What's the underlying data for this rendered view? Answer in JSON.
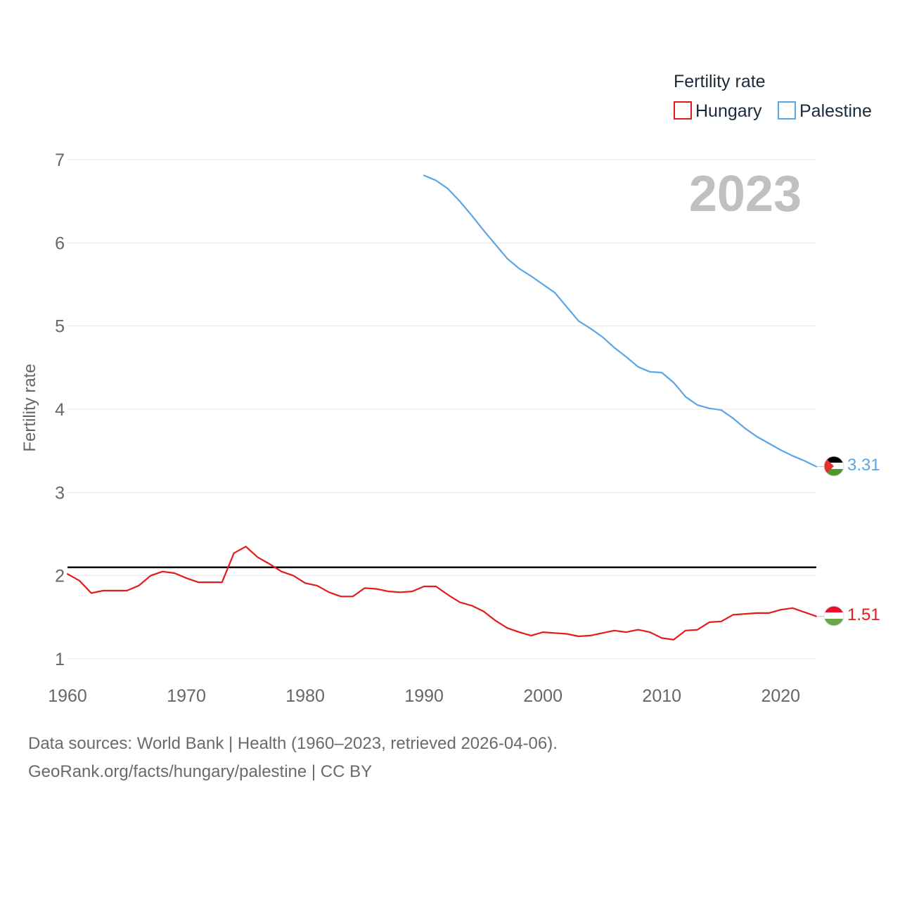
{
  "chart_data": {
    "type": "line",
    "title": "",
    "xlabel": "",
    "ylabel": "Fertility rate",
    "xlim": [
      1960,
      2023
    ],
    "ylim": [
      0.75,
      7
    ],
    "yticks": [
      1,
      2,
      3,
      4,
      5,
      6,
      7
    ],
    "xticks": [
      1960,
      1970,
      1980,
      1990,
      2000,
      2010,
      2020
    ],
    "year_label": "2023",
    "legend_title": "Fertility rate",
    "legend_position": "top-right",
    "reference_line": {
      "y": 2.1,
      "color": "#000000"
    },
    "series": [
      {
        "name": "Hungary",
        "color": "#e31b1b",
        "end_label": "1.51",
        "x": [
          1960,
          1961,
          1962,
          1963,
          1964,
          1965,
          1966,
          1967,
          1968,
          1969,
          1970,
          1971,
          1972,
          1973,
          1974,
          1975,
          1976,
          1977,
          1978,
          1979,
          1980,
          1981,
          1982,
          1983,
          1984,
          1985,
          1986,
          1987,
          1988,
          1989,
          1990,
          1991,
          1992,
          1993,
          1994,
          1995,
          1996,
          1997,
          1998,
          1999,
          2000,
          2001,
          2002,
          2003,
          2004,
          2005,
          2006,
          2007,
          2008,
          2009,
          2010,
          2011,
          2012,
          2013,
          2014,
          2015,
          2016,
          2017,
          2018,
          2019,
          2020,
          2021,
          2022,
          2023
        ],
        "values": [
          2.02,
          1.94,
          1.79,
          1.82,
          1.82,
          1.82,
          1.88,
          2.0,
          2.05,
          2.03,
          1.97,
          1.92,
          1.92,
          1.92,
          2.27,
          2.35,
          2.22,
          2.14,
          2.05,
          2.0,
          1.91,
          1.88,
          1.8,
          1.75,
          1.75,
          1.85,
          1.84,
          1.81,
          1.8,
          1.81,
          1.87,
          1.87,
          1.77,
          1.68,
          1.64,
          1.57,
          1.46,
          1.37,
          1.32,
          1.28,
          1.32,
          1.31,
          1.3,
          1.27,
          1.28,
          1.31,
          1.34,
          1.32,
          1.35,
          1.32,
          1.25,
          1.23,
          1.34,
          1.35,
          1.44,
          1.45,
          1.53,
          1.54,
          1.55,
          1.55,
          1.59,
          1.61,
          1.56,
          1.51
        ]
      },
      {
        "name": "Palestine",
        "color": "#5aa5e6",
        "end_label": "3.31",
        "x": [
          1990,
          1991,
          1992,
          1993,
          1994,
          1995,
          1996,
          1997,
          1998,
          1999,
          2000,
          2001,
          2002,
          2003,
          2004,
          2005,
          2006,
          2007,
          2008,
          2009,
          2010,
          2011,
          2012,
          2013,
          2014,
          2015,
          2016,
          2017,
          2018,
          2019,
          2020,
          2021,
          2022,
          2023
        ],
        "values": [
          6.81,
          6.75,
          6.65,
          6.5,
          6.33,
          6.15,
          5.98,
          5.81,
          5.69,
          5.6,
          5.5,
          5.4,
          5.23,
          5.06,
          4.97,
          4.87,
          4.74,
          4.63,
          4.51,
          4.45,
          4.44,
          4.32,
          4.15,
          4.05,
          4.01,
          3.99,
          3.89,
          3.77,
          3.67,
          3.59,
          3.51,
          3.44,
          3.38,
          3.31
        ]
      }
    ]
  },
  "footer": {
    "sources": "Data sources: World Bank | Health (1960–2023, retrieved 2026-04-06).",
    "attribution": "GeoRank.org/facts/hungary/palestine | CC BY"
  }
}
